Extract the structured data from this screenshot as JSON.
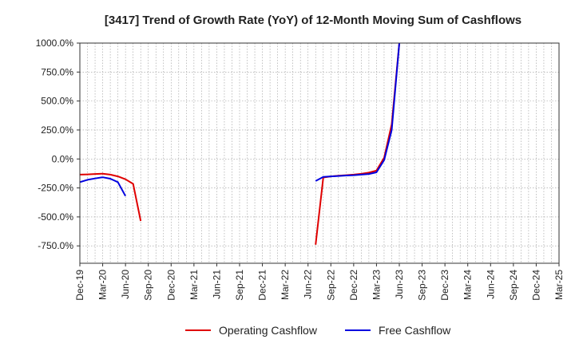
{
  "chart_data": {
    "type": "line",
    "title": "[3417]  Trend of Growth Rate (YoY) of 12-Month Moving Sum of Cashflows",
    "xlabel": "",
    "ylabel": "",
    "x_tick_labels": [
      "Dec-19",
      "Mar-20",
      "Jun-20",
      "Sep-20",
      "Dec-20",
      "Mar-21",
      "Jun-21",
      "Sep-21",
      "Dec-21",
      "Mar-22",
      "Jun-22",
      "Sep-22",
      "Dec-22",
      "Mar-23",
      "Jun-23",
      "Sep-23",
      "Dec-23",
      "Mar-24",
      "Jun-24",
      "Sep-24",
      "Dec-24",
      "Mar-25"
    ],
    "x_range": [
      "2019-12",
      "2025-03"
    ],
    "ylim": [
      -900,
      1000
    ],
    "y_ticks": [
      1000,
      750,
      500,
      250,
      0,
      -250,
      -500,
      -750
    ],
    "y_tick_labels": [
      "1000.0%",
      "750.0%",
      "500.0%",
      "250.0%",
      "0.0%",
      "-250.0%",
      "-500.0%",
      "-750.0%"
    ],
    "grid": true,
    "legend_position": "bottom",
    "series": [
      {
        "name": "Operating Cashflow",
        "color": "#e00000",
        "segments": [
          [
            [
              "2019-12",
              -135
            ],
            [
              "2020-01",
              -133
            ],
            [
              "2020-02",
              -130
            ],
            [
              "2020-03",
              -127
            ],
            [
              "2020-04",
              -135
            ],
            [
              "2020-05",
              -150
            ],
            [
              "2020-06",
              -175
            ],
            [
              "2020-07",
              -215
            ],
            [
              "2020-08",
              -535
            ]
          ],
          [
            [
              "2022-07",
              -740
            ],
            [
              "2022-08",
              -160
            ],
            [
              "2022-09",
              -150
            ],
            [
              "2022-10",
              -145
            ],
            [
              "2022-11",
              -140
            ],
            [
              "2022-12",
              -135
            ],
            [
              "2023-01",
              -128
            ],
            [
              "2023-02",
              -118
            ],
            [
              "2023-03",
              -100
            ],
            [
              "2023-04",
              10
            ],
            [
              "2023-05",
              300
            ],
            [
              "2023-06",
              1000
            ]
          ]
        ]
      },
      {
        "name": "Free Cashflow",
        "color": "#0000e0",
        "segments": [
          [
            [
              "2019-12",
              -200
            ],
            [
              "2020-01",
              -180
            ],
            [
              "2020-02",
              -168
            ],
            [
              "2020-03",
              -158
            ],
            [
              "2020-04",
              -170
            ],
            [
              "2020-05",
              -200
            ],
            [
              "2020-06",
              -320
            ]
          ],
          [
            [
              "2022-07",
              -190
            ],
            [
              "2022-08",
              -155
            ],
            [
              "2022-09",
              -150
            ],
            [
              "2022-10",
              -147
            ],
            [
              "2022-11",
              -143
            ],
            [
              "2022-12",
              -140
            ],
            [
              "2023-01",
              -135
            ],
            [
              "2023-02",
              -130
            ],
            [
              "2023-03",
              -115
            ],
            [
              "2023-04",
              -10
            ],
            [
              "2023-05",
              250
            ],
            [
              "2023-06",
              1000
            ]
          ]
        ]
      }
    ]
  }
}
